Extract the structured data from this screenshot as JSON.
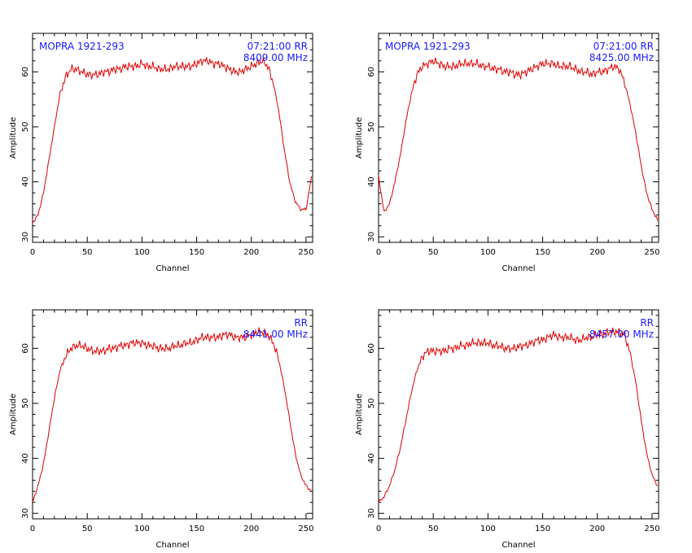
{
  "chart_data": [
    {
      "type": "line",
      "xlabel": "Channel",
      "ylabel": "Amplitude",
      "xlim": [
        0,
        256
      ],
      "ylim": [
        29,
        67
      ],
      "xticks": [
        0,
        50,
        100,
        150,
        200,
        250
      ],
      "yticks": [
        30,
        40,
        50,
        60
      ],
      "grid": false,
      "line_color": "#e00000",
      "annotation_color": "#1a1aff",
      "annot_left": "MOPRA 1921-293",
      "annot_right_1": "07:21:00 RR",
      "annot_right_2": "8409.00 MHz",
      "series": [
        {
          "x": [
            0,
            5,
            10,
            15,
            20,
            25,
            30,
            35,
            40,
            45,
            50,
            55,
            60,
            65,
            70,
            75,
            80,
            85,
            90,
            95,
            100,
            105,
            110,
            115,
            120,
            125,
            130,
            135,
            140,
            145,
            150,
            155,
            160,
            165,
            170,
            175,
            180,
            185,
            190,
            195,
            200,
            205,
            210,
            215,
            220,
            225,
            230,
            235,
            240,
            245,
            250,
            255
          ],
          "values": [
            32.5,
            34,
            38,
            44,
            50,
            56,
            59,
            60.5,
            60.5,
            60,
            59.5,
            59.5,
            59.5,
            60,
            60,
            60.5,
            60.5,
            61,
            61,
            61,
            61.5,
            61,
            61,
            60.5,
            60.5,
            60.5,
            61,
            61,
            61,
            61,
            61.5,
            62,
            62,
            61.5,
            61.5,
            61,
            60.5,
            60,
            60,
            60.5,
            61,
            61.5,
            62,
            61,
            58,
            53,
            46,
            40,
            36.5,
            35,
            35,
            41
          ]
        }
      ]
    },
    {
      "type": "line",
      "xlabel": "Channel",
      "ylabel": "Amplitude",
      "xlim": [
        0,
        256
      ],
      "ylim": [
        29,
        67
      ],
      "xticks": [
        0,
        50,
        100,
        150,
        200,
        250
      ],
      "yticks": [
        30,
        40,
        50,
        60
      ],
      "grid": false,
      "line_color": "#e00000",
      "annotation_color": "#1a1aff",
      "annot_left": "MOPRA 1921-293",
      "annot_right_1": "07:21:00 RR",
      "annot_right_2": "8425.00 MHz",
      "series": [
        {
          "x": [
            0,
            5,
            10,
            15,
            20,
            25,
            30,
            35,
            40,
            45,
            50,
            55,
            60,
            65,
            70,
            75,
            80,
            85,
            90,
            95,
            100,
            105,
            110,
            115,
            120,
            125,
            130,
            135,
            140,
            145,
            150,
            155,
            160,
            165,
            170,
            175,
            180,
            185,
            190,
            195,
            200,
            205,
            210,
            215,
            220,
            225,
            230,
            235,
            240,
            245,
            250,
            255
          ],
          "values": [
            41,
            34.5,
            36,
            40,
            45,
            51,
            56,
            59.5,
            61,
            61.5,
            62,
            61.5,
            61,
            61,
            61,
            61.5,
            61.5,
            61.5,
            61.5,
            61,
            61,
            60.5,
            60.5,
            60,
            60,
            59.5,
            59.5,
            60,
            60.5,
            61,
            61.5,
            61.5,
            61.5,
            61,
            61,
            61,
            60.5,
            60,
            60,
            59.5,
            60,
            60,
            60.5,
            61,
            60.5,
            58,
            54,
            49,
            43,
            38,
            35,
            33
          ]
        }
      ]
    },
    {
      "type": "line",
      "xlabel": "Channel",
      "ylabel": "Amplitude",
      "xlim": [
        0,
        256
      ],
      "ylim": [
        29,
        67
      ],
      "xticks": [
        0,
        50,
        100,
        150,
        200,
        250
      ],
      "yticks": [
        30,
        40,
        50,
        60
      ],
      "grid": false,
      "line_color": "#e00000",
      "annotation_color": "#1a1aff",
      "annot_left": "",
      "annot_right_1": "RR",
      "annot_right_2": "8441.00 MHz",
      "series": [
        {
          "x": [
            0,
            5,
            10,
            15,
            20,
            25,
            30,
            35,
            40,
            45,
            50,
            55,
            60,
            65,
            70,
            75,
            80,
            85,
            90,
            95,
            100,
            105,
            110,
            115,
            120,
            125,
            130,
            135,
            140,
            145,
            150,
            155,
            160,
            165,
            170,
            175,
            180,
            185,
            190,
            195,
            200,
            205,
            210,
            215,
            220,
            225,
            230,
            235,
            240,
            245,
            250,
            255
          ],
          "values": [
            32,
            35,
            39,
            45,
            51,
            56,
            58.5,
            60,
            60.5,
            60.5,
            60,
            59.5,
            59.5,
            59.5,
            60,
            60,
            60.5,
            60.5,
            61,
            61,
            61,
            60.5,
            60.5,
            60,
            60,
            60,
            60.5,
            60.5,
            61,
            61,
            61.5,
            62,
            62,
            62,
            62,
            62.5,
            62.5,
            62,
            62,
            62,
            62.5,
            63,
            63,
            62.5,
            61,
            58,
            53,
            47,
            41,
            37,
            35,
            34
          ]
        }
      ]
    },
    {
      "type": "line",
      "xlabel": "Channel",
      "ylabel": "Amplitude",
      "xlim": [
        0,
        256
      ],
      "ylim": [
        29,
        67
      ],
      "xticks": [
        0,
        50,
        100,
        150,
        200,
        250
      ],
      "yticks": [
        30,
        40,
        50,
        60
      ],
      "grid": false,
      "line_color": "#e00000",
      "annotation_color": "#1a1aff",
      "annot_left": "",
      "annot_right_1": "RR",
      "annot_right_2": "8457.00 MHz",
      "series": [
        {
          "x": [
            0,
            5,
            10,
            15,
            20,
            25,
            30,
            35,
            40,
            45,
            50,
            55,
            60,
            65,
            70,
            75,
            80,
            85,
            90,
            95,
            100,
            105,
            110,
            115,
            120,
            125,
            130,
            135,
            140,
            145,
            150,
            155,
            160,
            165,
            170,
            175,
            180,
            185,
            190,
            195,
            200,
            205,
            210,
            215,
            220,
            225,
            230,
            235,
            240,
            245,
            250,
            255
          ],
          "values": [
            32,
            33,
            35,
            38,
            42,
            47,
            52,
            56,
            58.5,
            59.5,
            59.5,
            59.5,
            59.5,
            60,
            60,
            60.5,
            60.5,
            61,
            61,
            61,
            61,
            60.5,
            60.5,
            60,
            60,
            60,
            60.5,
            60.5,
            61,
            61.5,
            61.5,
            62,
            62.5,
            62,
            62,
            62,
            61.5,
            61.5,
            62,
            62,
            62.5,
            62.5,
            63,
            63,
            63,
            62.5,
            59,
            54,
            47,
            41,
            37,
            35
          ]
        }
      ]
    }
  ]
}
